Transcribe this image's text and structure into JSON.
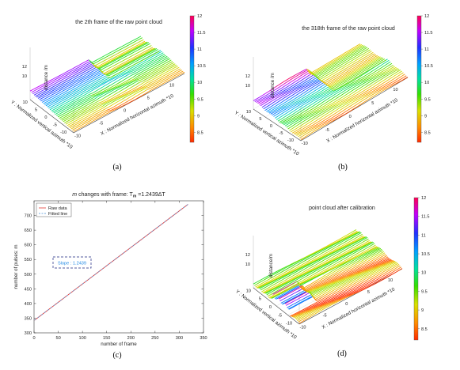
{
  "chart_data": [
    {
      "panel": "a",
      "type": "scatter3d",
      "title": "the 2th frame of the raw point cloud",
      "xlabel": "X : Normalized horizontal azimuth *10",
      "ylabel": "Y : Normalized vertical azimuth *10",
      "zlabel": "distance /m",
      "x_ticks": [
        "-10",
        "-5",
        "0",
        "5",
        "10"
      ],
      "y_ticks": [
        "-10",
        "-5",
        "0",
        "5",
        "10"
      ],
      "z_ticks": [
        "10",
        "12"
      ],
      "xlim": [
        -10,
        12
      ],
      "ylim": [
        -10,
        10
      ],
      "zlim": [
        8,
        12
      ],
      "colorbar_ticks": [
        "12",
        "11.5",
        "11",
        "10.5",
        "10",
        "9.5",
        "9",
        "8.5"
      ],
      "colorbar_range": [
        8.2,
        12
      ],
      "grid": true,
      "caption": "(a)"
    },
    {
      "panel": "b",
      "type": "scatter3d",
      "title": "the 318th frame of the raw point cloud",
      "xlabel": "X : Normalized horizontal azimuth *10",
      "ylabel": "Y : Normalized vertical azimuth *10",
      "zlabel": "distance /m",
      "x_ticks": [
        "-10",
        "-5",
        "0",
        "5",
        "10"
      ],
      "y_ticks": [
        "-10",
        "-5",
        "0",
        "5",
        "10"
      ],
      "z_ticks": [
        "10",
        "12"
      ],
      "xlim": [
        -10,
        12
      ],
      "ylim": [
        -10,
        10
      ],
      "zlim": [
        8,
        12
      ],
      "colorbar_ticks": [
        "12",
        "11.5",
        "11",
        "10.5",
        "10",
        "9.5",
        "9",
        "8.5"
      ],
      "colorbar_range": [
        8.2,
        12
      ],
      "grid": true,
      "caption": "(b)"
    },
    {
      "panel": "c",
      "type": "line",
      "title_prefix": "m",
      "title_main": " changes with frame: T",
      "title_sub": "m",
      "title_suffix": " =1.2439ΔT",
      "xlabel": "number of frame",
      "ylabel": "number of pulses: m",
      "xlim": [
        0,
        350
      ],
      "ylim": [
        300,
        750
      ],
      "x_ticks": [
        0,
        50,
        100,
        150,
        200,
        250,
        300,
        350
      ],
      "y_ticks": [
        300,
        350,
        400,
        450,
        500,
        550,
        600,
        650,
        700
      ],
      "series": [
        {
          "name": "Raw data",
          "color": "#e53935",
          "style": "solid",
          "x": [
            1,
            318
          ],
          "y": [
            343,
            738
          ]
        },
        {
          "name": "Fitted line",
          "color": "#4a90d9",
          "style": "dashed",
          "x": [
            1,
            318
          ],
          "y": [
            343,
            738
          ]
        }
      ],
      "annotation": "Slope : 1.2439",
      "legend_position": "top-left",
      "grid": false,
      "caption": "(c)"
    },
    {
      "panel": "d",
      "type": "scatter3d",
      "title": "point cloud after calibration",
      "xlabel": "X : Normalized horizontal azimuth *10",
      "ylabel": "Y : Normalized vertical azimuth *10",
      "zlabel": "distance/m",
      "x_ticks": [
        "-10",
        "-5",
        "0",
        "5",
        "10"
      ],
      "y_ticks": [
        "-10",
        "-5",
        "0",
        "5",
        "10"
      ],
      "z_ticks": [
        "10",
        "12"
      ],
      "xlim": [
        -10,
        12
      ],
      "ylim": [
        -10,
        10
      ],
      "zlim": [
        8,
        12
      ],
      "colorbar_ticks": [
        "12",
        "11.5",
        "11",
        "10.5",
        "10",
        "9.5",
        "9",
        "8.5"
      ],
      "colorbar_range": [
        8.2,
        12
      ],
      "grid": true,
      "caption": "(d)"
    }
  ]
}
